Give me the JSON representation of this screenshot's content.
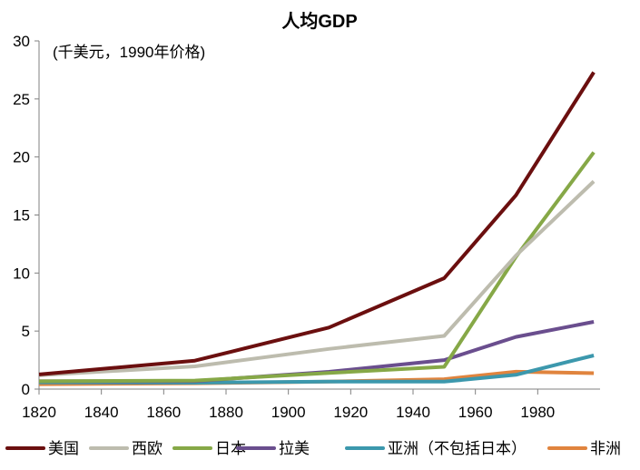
{
  "chart_data": {
    "type": "line",
    "title": "人均GDP",
    "subtitle": "(千美元，1990年价格)",
    "xlabel": "",
    "ylabel": "",
    "xlim": [
      1820,
      2000
    ],
    "ylim": [
      0,
      30
    ],
    "xticks": [
      "1820",
      "1840",
      "1860",
      "1880",
      "1900",
      "1920",
      "1940",
      "1960",
      "1980"
    ],
    "yticks": [
      "0",
      "5",
      "10",
      "15",
      "20",
      "25",
      "30"
    ],
    "x": [
      1820,
      1870,
      1913,
      1950,
      1973,
      1998
    ],
    "legend_position": "bottom",
    "series": [
      {
        "name": "美国",
        "color": "#6b0f0f",
        "values": [
          1.26,
          2.45,
          5.3,
          9.56,
          16.7,
          27.3
        ]
      },
      {
        "name": "西欧",
        "color": "#bdbcae",
        "values": [
          1.2,
          1.96,
          3.46,
          4.58,
          11.5,
          17.9
        ]
      },
      {
        "name": "日本",
        "color": "#86a847",
        "values": [
          0.67,
          0.74,
          1.39,
          1.92,
          11.4,
          20.4
        ]
      },
      {
        "name": "拉美",
        "color": "#6a4e8e",
        "values": [
          0.67,
          0.68,
          1.49,
          2.5,
          4.5,
          5.8
        ]
      },
      {
        "name": "亚洲（不包括日本）",
        "color": "#3c98ad",
        "values": [
          0.58,
          0.55,
          0.64,
          0.64,
          1.23,
          2.9
        ]
      },
      {
        "name": "非洲",
        "color": "#e0843e",
        "values": [
          0.42,
          0.5,
          0.64,
          0.85,
          1.5,
          1.37
        ]
      }
    ]
  }
}
